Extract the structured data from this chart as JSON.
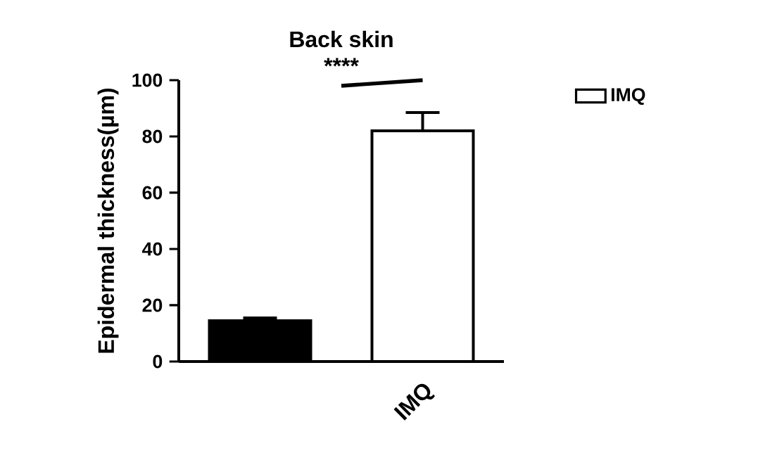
{
  "chart_data": {
    "type": "bar",
    "title": "Back skin",
    "ylabel": "Epidermal thickness(µm)",
    "categories": [
      null,
      "IMQ"
    ],
    "series": [
      {
        "color": "#000000",
        "values": [
          14.5,
          null
        ],
        "errors": [
          1,
          null
        ]
      },
      {
        "name": "IMQ",
        "color": "#ffffff",
        "values": [
          null,
          82
        ],
        "errors": [
          null,
          6.5
        ]
      }
    ],
    "ylim": [
      0,
      100
    ],
    "yticks": [
      0,
      20,
      40,
      60,
      80,
      100
    ],
    "grid": false,
    "legend": "top right",
    "annotations": [
      "****"
    ]
  }
}
